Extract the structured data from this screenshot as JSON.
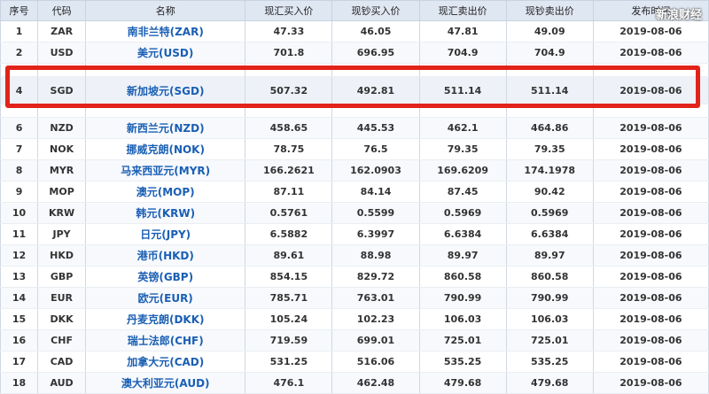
{
  "headers": [
    "序号",
    "代码",
    "名称",
    "现汇买入价",
    "现钞买入价",
    "现汇卖出价",
    "现钞卖出价",
    "发布时间"
  ],
  "watermark": "新浪财经",
  "highlight_color": "#e2231a",
  "rows": [
    {
      "no": "1",
      "code": "ZAR",
      "name": "南非兰特(ZAR)",
      "bb": "47.33",
      "cb": "46.05",
      "bs": "47.81",
      "cs": "49.09",
      "date": "2019-08-06"
    },
    {
      "no": "2",
      "code": "USD",
      "name": "美元(USD)",
      "bb": "701.8",
      "cb": "696.95",
      "bs": "704.9",
      "cs": "704.9",
      "date": "2019-08-06"
    },
    {
      "no": "4",
      "code": "SGD",
      "name": "新加坡元(SGD)",
      "bb": "507.32",
      "cb": "492.81",
      "bs": "511.14",
      "cs": "511.14",
      "date": "2019-08-06"
    },
    {
      "no": "6",
      "code": "NZD",
      "name": "新西兰元(NZD)",
      "bb": "458.65",
      "cb": "445.53",
      "bs": "462.1",
      "cs": "464.86",
      "date": "2019-08-06"
    },
    {
      "no": "7",
      "code": "NOK",
      "name": "挪威克朗(NOK)",
      "bb": "78.75",
      "cb": "76.5",
      "bs": "79.35",
      "cs": "79.35",
      "date": "2019-08-06"
    },
    {
      "no": "8",
      "code": "MYR",
      "name": "马来西亚元(MYR)",
      "bb": "166.2621",
      "cb": "162.0903",
      "bs": "169.6209",
      "cs": "174.1978",
      "date": "2019-08-06"
    },
    {
      "no": "9",
      "code": "MOP",
      "name": "澳元(MOP)",
      "bb": "87.11",
      "cb": "84.14",
      "bs": "87.45",
      "cs": "90.42",
      "date": "2019-08-06"
    },
    {
      "no": "10",
      "code": "KRW",
      "name": "韩元(KRW)",
      "bb": "0.5761",
      "cb": "0.5599",
      "bs": "0.5969",
      "cs": "0.5969",
      "date": "2019-08-06"
    },
    {
      "no": "11",
      "code": "JPY",
      "name": "日元(JPY)",
      "bb": "6.5882",
      "cb": "6.3997",
      "bs": "6.6384",
      "cs": "6.6384",
      "date": "2019-08-06"
    },
    {
      "no": "12",
      "code": "HKD",
      "name": "港币(HKD)",
      "bb": "89.61",
      "cb": "88.98",
      "bs": "89.97",
      "cs": "89.97",
      "date": "2019-08-06"
    },
    {
      "no": "13",
      "code": "GBP",
      "name": "英镑(GBP)",
      "bb": "854.15",
      "cb": "829.72",
      "bs": "860.58",
      "cs": "860.58",
      "date": "2019-08-06"
    },
    {
      "no": "14",
      "code": "EUR",
      "name": "欧元(EUR)",
      "bb": "785.71",
      "cb": "763.01",
      "bs": "790.99",
      "cs": "790.99",
      "date": "2019-08-06"
    },
    {
      "no": "15",
      "code": "DKK",
      "name": "丹麦克朗(DKK)",
      "bb": "105.24",
      "cb": "102.23",
      "bs": "106.03",
      "cs": "106.03",
      "date": "2019-08-06"
    },
    {
      "no": "16",
      "code": "CHF",
      "name": "瑞士法郎(CHF)",
      "bb": "719.59",
      "cb": "699.01",
      "bs": "725.01",
      "cs": "725.01",
      "date": "2019-08-06"
    },
    {
      "no": "17",
      "code": "CAD",
      "name": "加拿大元(CAD)",
      "bb": "531.25",
      "cb": "516.06",
      "bs": "535.25",
      "cs": "535.25",
      "date": "2019-08-06"
    },
    {
      "no": "18",
      "code": "AUD",
      "name": "澳大利亚元(AUD)",
      "bb": "476.1",
      "cb": "462.48",
      "bs": "479.68",
      "cs": "479.68",
      "date": "2019-08-06"
    }
  ]
}
